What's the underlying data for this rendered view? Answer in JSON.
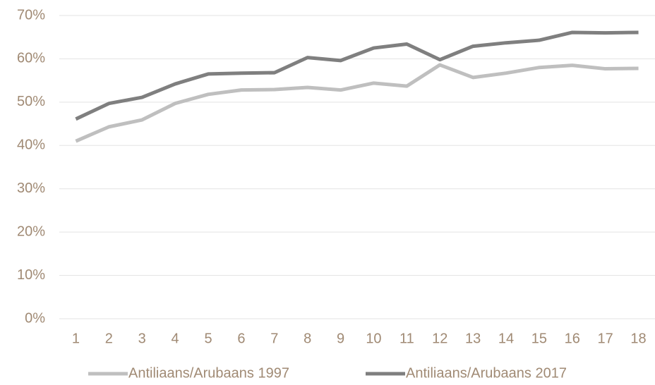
{
  "chart_data": {
    "type": "line",
    "categories": [
      "1",
      "2",
      "3",
      "4",
      "5",
      "6",
      "7",
      "8",
      "9",
      "10",
      "11",
      "12",
      "13",
      "14",
      "15",
      "16",
      "17",
      "18"
    ],
    "series": [
      {
        "name": "Antiliaans/Arubaans 1997",
        "color": "#bfbfbf",
        "values": [
          41,
          44.3,
          45.9,
          49.7,
          51.8,
          52.8,
          52.9,
          53.4,
          52.8,
          54.4,
          53.7,
          58.6,
          55.7,
          56.7,
          58,
          58.5,
          57.7,
          57.8
        ]
      },
      {
        "name": "Antiliaans/Arubaans 2017",
        "color": "#7f7f7f",
        "values": [
          46.1,
          49.7,
          51.1,
          54.2,
          56.5,
          56.7,
          56.8,
          60.3,
          59.6,
          62.5,
          63.4,
          59.8,
          62.9,
          63.7,
          64.3,
          66.1,
          66,
          66.1
        ]
      }
    ],
    "ylim": [
      0,
      70
    ],
    "yticks": [
      {
        "value": 0,
        "label": "0%"
      },
      {
        "value": 10,
        "label": "10%"
      },
      {
        "value": 20,
        "label": "20%"
      },
      {
        "value": 30,
        "label": "30%"
      },
      {
        "value": 40,
        "label": "40%"
      },
      {
        "value": 50,
        "label": "50%"
      },
      {
        "value": 60,
        "label": "60%"
      },
      {
        "value": 70,
        "label": "70%"
      }
    ],
    "grid": true,
    "legend": "bottom"
  }
}
